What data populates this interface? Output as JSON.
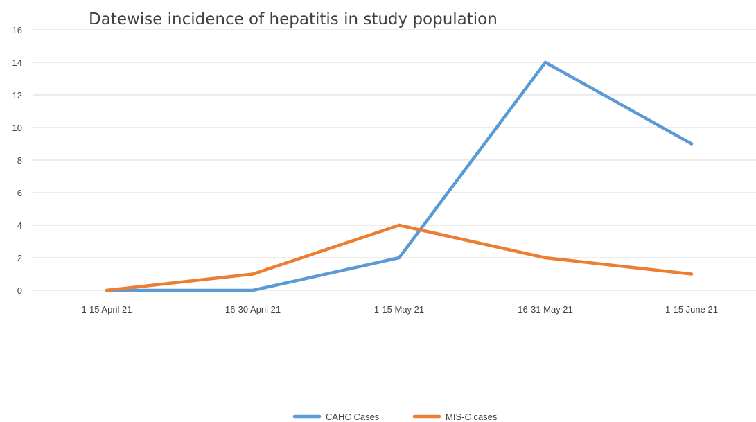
{
  "chart_data": {
    "type": "line",
    "title": "Datewise incidence of hepatitis in study population",
    "xlabel": "",
    "ylabel": "",
    "categories": [
      "1-15 April 21",
      "16-30 April 21",
      "1-15 May 21",
      "16-31 May 21",
      "1-15 June 21"
    ],
    "series": [
      {
        "name": "CAHC Cases",
        "values": [
          0,
          0,
          2,
          14,
          9
        ],
        "color": "#5b9bd5"
      },
      {
        "name": "MIS-C cases",
        "values": [
          0,
          1,
          4,
          2,
          1
        ],
        "color": "#ed7d31"
      }
    ],
    "ylim": [
      0,
      16
    ],
    "yticks": [
      0,
      2,
      4,
      6,
      8,
      10,
      12,
      14,
      16
    ],
    "grid": true,
    "legend_position": "bottom"
  },
  "stray_mark": "-"
}
